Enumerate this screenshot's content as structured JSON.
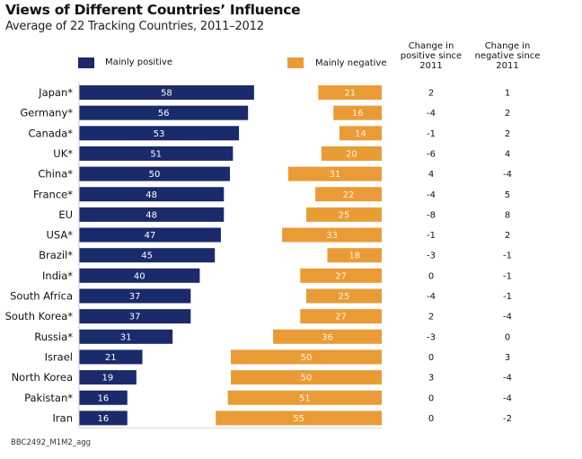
{
  "chart_data": {
    "type": "bar",
    "title": "Views of Different Countries’ Influence",
    "subtitle": "Average of 22 Tracking Countries, 2011–2012",
    "xlabel": "",
    "ylabel": "",
    "categories": [
      "Japan*",
      "Germany*",
      "Canada*",
      "UK*",
      "China*",
      "France*",
      "EU",
      "USA*",
      "Brazil*",
      "India*",
      "South Africa",
      "South Korea*",
      "Russia*",
      "Israel",
      "North Korea",
      "Pakistan*",
      "Iran"
    ],
    "series": [
      {
        "name": "Mainly positive",
        "color": "#1b2a6b",
        "values": [
          58,
          56,
          53,
          51,
          50,
          48,
          48,
          47,
          45,
          40,
          37,
          37,
          31,
          21,
          19,
          16,
          16
        ]
      },
      {
        "name": "Mainly negative",
        "color": "#e99c36",
        "values": [
          21,
          16,
          14,
          20,
          31,
          22,
          25,
          33,
          18,
          27,
          25,
          27,
          36,
          50,
          50,
          51,
          55
        ]
      }
    ],
    "change_columns": [
      {
        "header": [
          "Change in",
          "positive since",
          "2011"
        ],
        "values": [
          "2",
          "-4",
          "-1",
          "-6",
          "4",
          "-4",
          "-8",
          "-1",
          "-3",
          "0",
          "-4",
          "2",
          "-3",
          "0",
          "3",
          "0",
          "0"
        ]
      },
      {
        "header": [
          "Change in",
          "negative since",
          "2011"
        ],
        "values": [
          "1",
          "2",
          "2",
          "4",
          "-4",
          "5",
          "8",
          "2",
          "-1",
          "-1",
          "-1",
          "-4",
          "0",
          "3",
          "-4",
          "-4",
          "-2"
        ]
      }
    ],
    "legend": {
      "placement": "top",
      "items": [
        "Mainly positive",
        "Mainly negative"
      ]
    },
    "grid": false,
    "xlim": [
      0,
      100
    ]
  },
  "footer": "BBC2492_M1M2_agg"
}
